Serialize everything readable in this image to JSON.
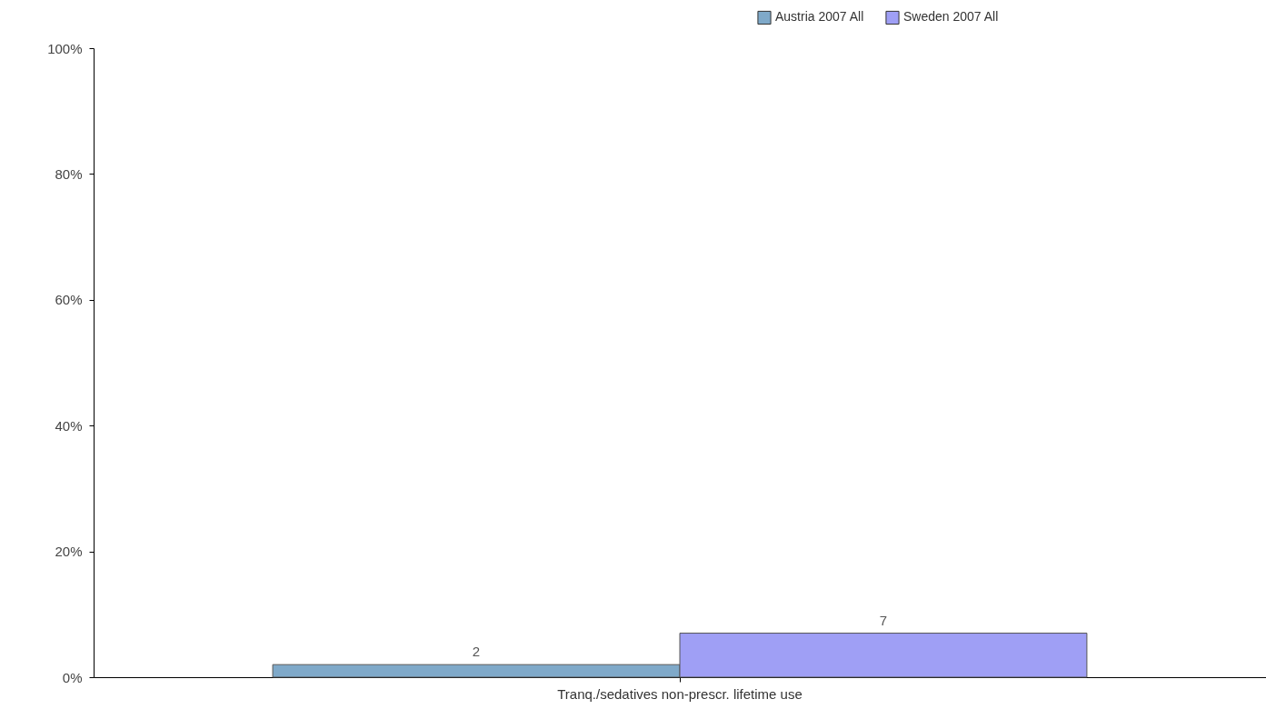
{
  "chart_data": {
    "type": "bar",
    "categories": [
      "Tranq./sedatives non-prescr. lifetime use"
    ],
    "series": [
      {
        "name": "Austria 2007 All",
        "color": "#7fa9c9",
        "values": [
          2
        ]
      },
      {
        "name": "Sweden 2007 All",
        "color": "#9f9ff5",
        "values": [
          7
        ]
      }
    ],
    "ylim": [
      0,
      100
    ],
    "yticks": [
      {
        "value": 0,
        "label": "0%"
      },
      {
        "value": 20,
        "label": "20%"
      },
      {
        "value": 40,
        "label": "40%"
      },
      {
        "value": 60,
        "label": "60%"
      },
      {
        "value": 80,
        "label": "80%"
      },
      {
        "value": 100,
        "label": "100%"
      }
    ],
    "data_labels": true,
    "legend": "top right",
    "grid": false
  }
}
